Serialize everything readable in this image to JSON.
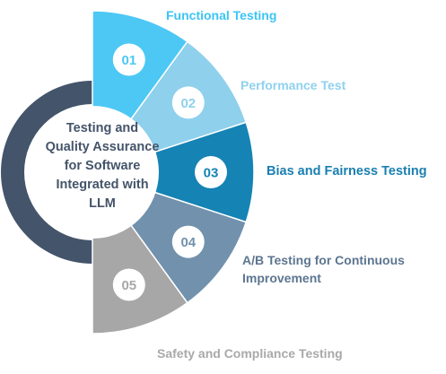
{
  "center": {
    "title": "Testing and Quality Assurance for Software Integrated with LLM"
  },
  "segments": [
    {
      "number": "01",
      "label": "Functional Testing",
      "color": "#4dc8f5",
      "text_color": "#3cc4f4"
    },
    {
      "number": "02",
      "label": "Performance Test",
      "color": "#8fd0ec",
      "text_color": "#8fd1ee"
    },
    {
      "number": "03",
      "label": "Bias and Fairness Testing",
      "color": "#1583b4",
      "text_color": "#1a7fb0"
    },
    {
      "number": "04",
      "label": "A/B Testing for Continuous Improvement",
      "color": "#7191ad",
      "text_color": "#5c7590"
    },
    {
      "number": "05",
      "label": "Safety and Compliance Testing",
      "color": "#a7a7a7",
      "text_color": "#a9a9a9"
    }
  ],
  "ring": {
    "color": "#44546a"
  }
}
